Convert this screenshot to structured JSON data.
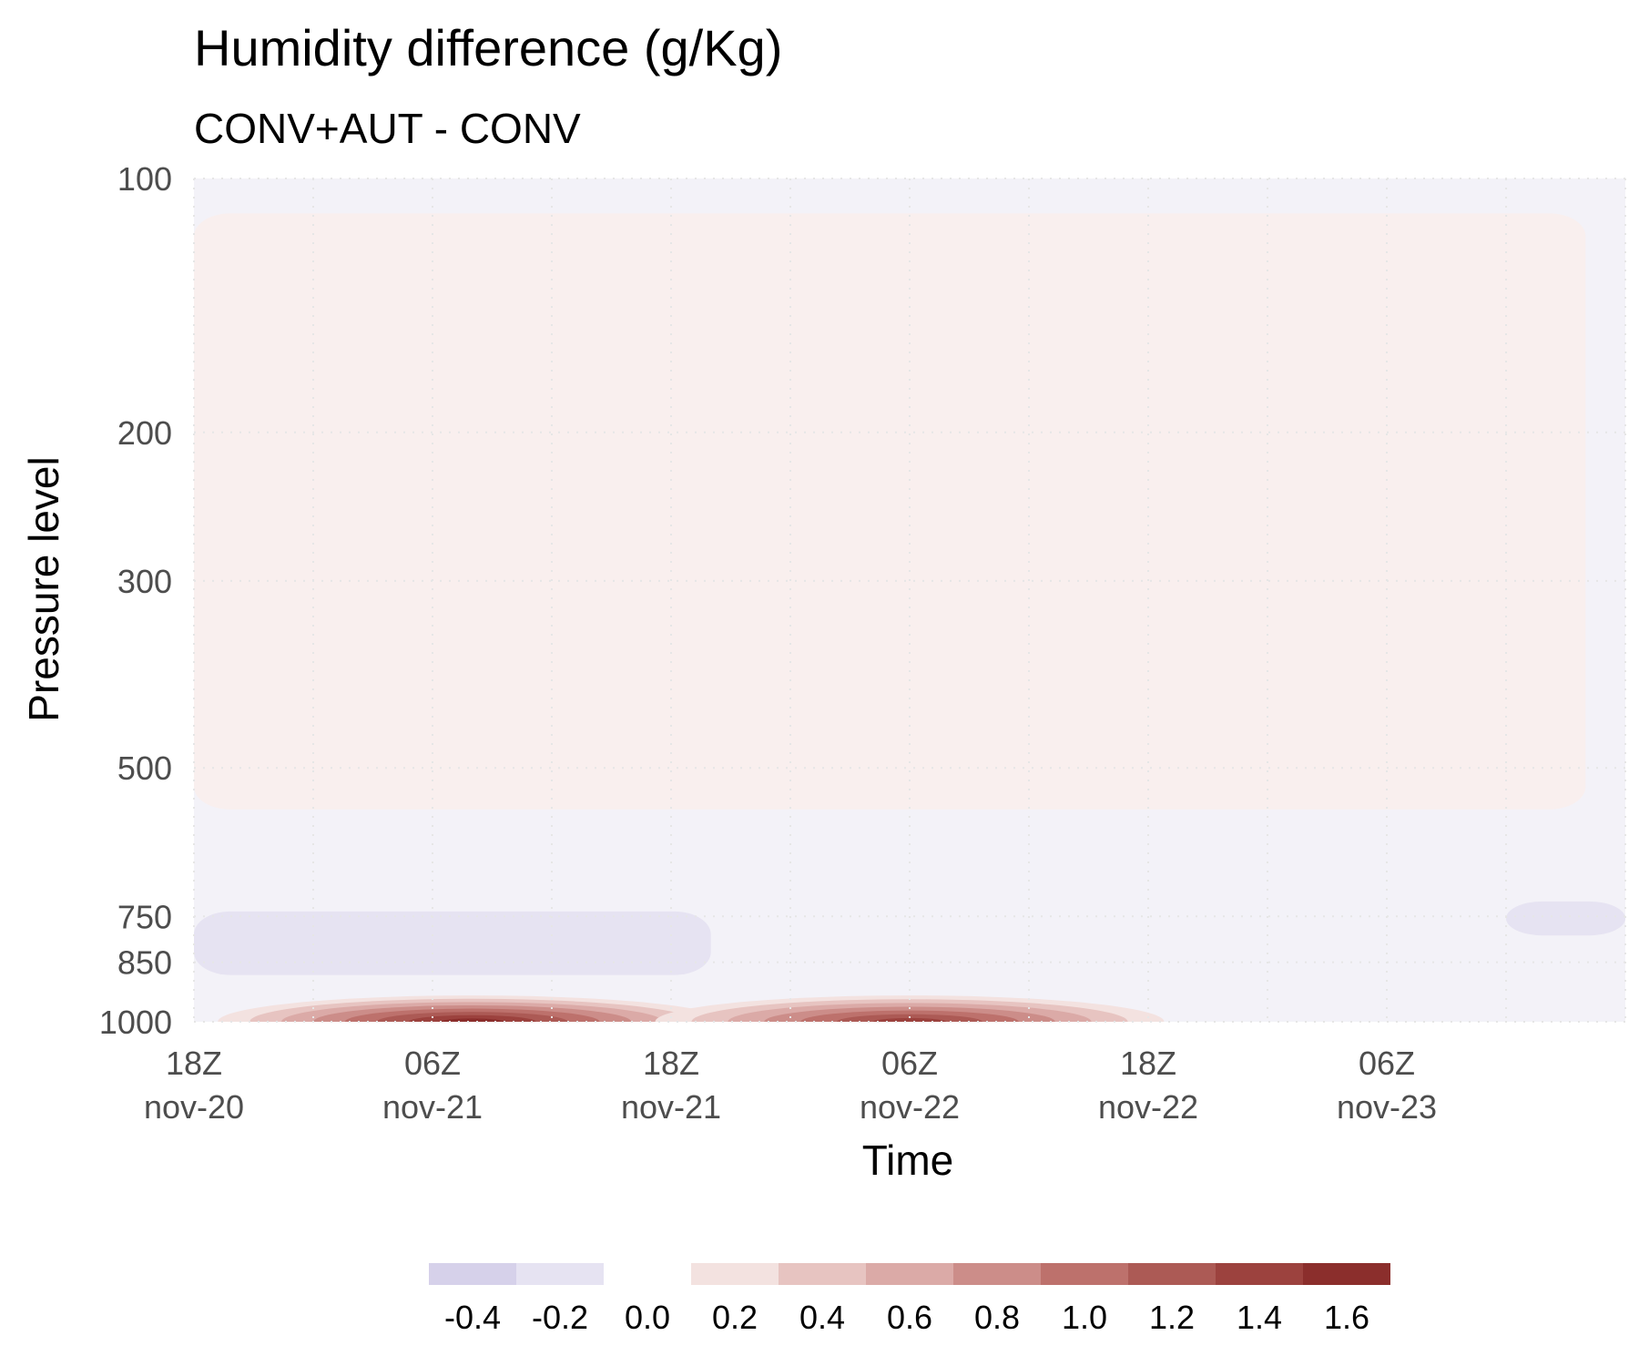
{
  "chart_data": {
    "type": "heatmap",
    "title": "Humidity difference (g/Kg)",
    "subtitle": "CONV+AUT - CONV",
    "xlabel": "Time",
    "ylabel": "Pressure level",
    "y_scale": "log",
    "y_reversed": true,
    "ylim": [
      1000,
      100
    ],
    "y_ticks": [
      {
        "value": 100,
        "label": "100"
      },
      {
        "value": 200,
        "label": "200"
      },
      {
        "value": 300,
        "label": "300"
      },
      {
        "value": 500,
        "label": "500"
      },
      {
        "value": 750,
        "label": "750"
      },
      {
        "value": 850,
        "label": "850"
      },
      {
        "value": 1000,
        "label": "1000"
      }
    ],
    "xlim": [
      "2020-11-20 18Z",
      "2020-11-23 18Z"
    ],
    "x_ticks": [
      {
        "time": "18Z",
        "date": "nov-20"
      },
      {
        "time": "06Z",
        "date": "nov-21"
      },
      {
        "time": "18Z",
        "date": "nov-21"
      },
      {
        "time": "06Z",
        "date": "nov-22"
      },
      {
        "time": "18Z",
        "date": "nov-22"
      },
      {
        "time": "06Z",
        "date": "nov-23"
      }
    ],
    "grid": true,
    "legend_position": "bottom",
    "legend": {
      "levels": [
        -0.4,
        -0.2,
        0.0,
        0.2,
        0.4,
        0.6,
        0.8,
        1.0,
        1.2,
        1.4,
        1.6
      ],
      "labels": [
        "-0.4",
        "-0.2",
        "0.0",
        "0.2",
        "0.4",
        "0.6",
        "0.8",
        "1.0",
        "1.2",
        "1.4",
        "1.6"
      ],
      "colors": [
        "#d6d1ea",
        "#e6e3f2",
        "#ffffff",
        "#f3e2e0",
        "#e7c4c1",
        "#dbaaa7",
        "#cc8d89",
        "#bd716c",
        "#ac5a55",
        "#9c423e",
        "#8b2e2c"
      ]
    },
    "field": {
      "background": "#f3f2f8",
      "positive_weak": "#f9efee",
      "negative_weak": "#f3f2f8",
      "features": [
        {
          "desc": "upper positive band",
          "time": [
            "2020-11-20 18Z",
            "2020-11-23 16Z"
          ],
          "pressure": [
            110,
            560
          ],
          "value": 0.05
        },
        {
          "desc": "low level dry band",
          "time": [
            "2020-11-20 18Z",
            "2020-11-21 20Z"
          ],
          "pressure": [
            740,
            880
          ],
          "value": -0.3
        },
        {
          "desc": "near surface moist max 1",
          "time": [
            "2020-11-21 04Z",
            "2020-11-21 12Z"
          ],
          "pressure": [
            950,
            1000
          ],
          "value": 1.6
        },
        {
          "desc": "near surface moist max 2",
          "time": [
            "2020-11-22 02Z",
            "2020-11-22 10Z"
          ],
          "pressure": [
            950,
            1000
          ],
          "value": 1.5
        },
        {
          "desc": "dry patch late",
          "time": [
            "2020-11-23 12Z",
            "2020-11-23 18Z"
          ],
          "pressure": [
            720,
            790
          ],
          "value": -0.3
        }
      ]
    }
  }
}
